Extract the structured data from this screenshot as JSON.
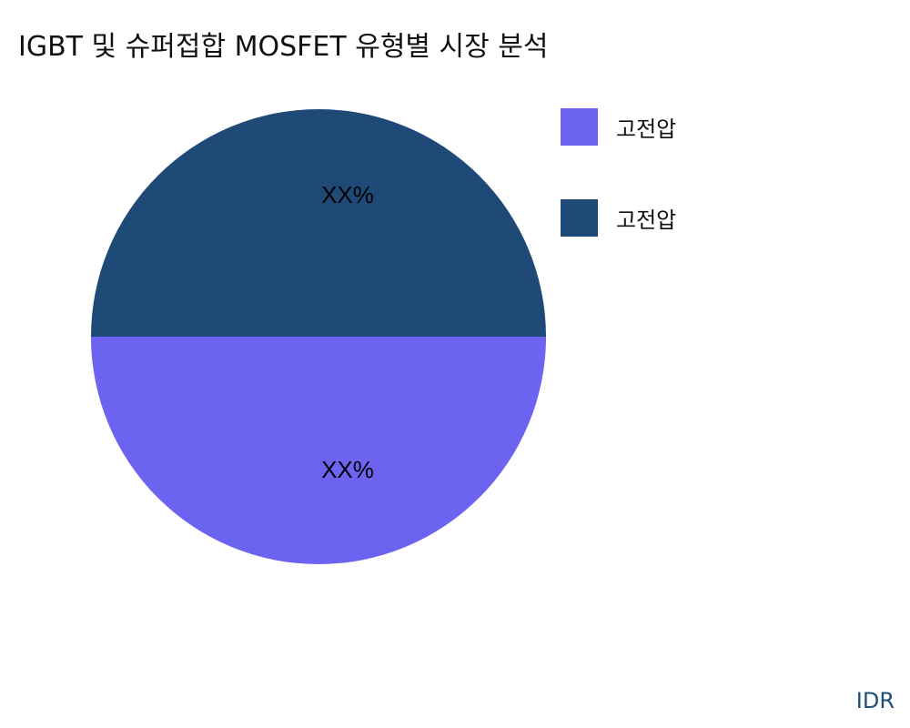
{
  "chart_data": {
    "type": "pie",
    "title": "IGBT 및 슈퍼접합 MOSFET 유형별 시장 분석",
    "slices": [
      {
        "label": "고전압",
        "value": 50,
        "data_label": "XX%",
        "color": "#6c63f0"
      },
      {
        "label": "고전압",
        "value": 50,
        "data_label": "XX%",
        "color": "#1f4a78"
      }
    ],
    "legend_position": "right"
  },
  "watermark": "IDR"
}
